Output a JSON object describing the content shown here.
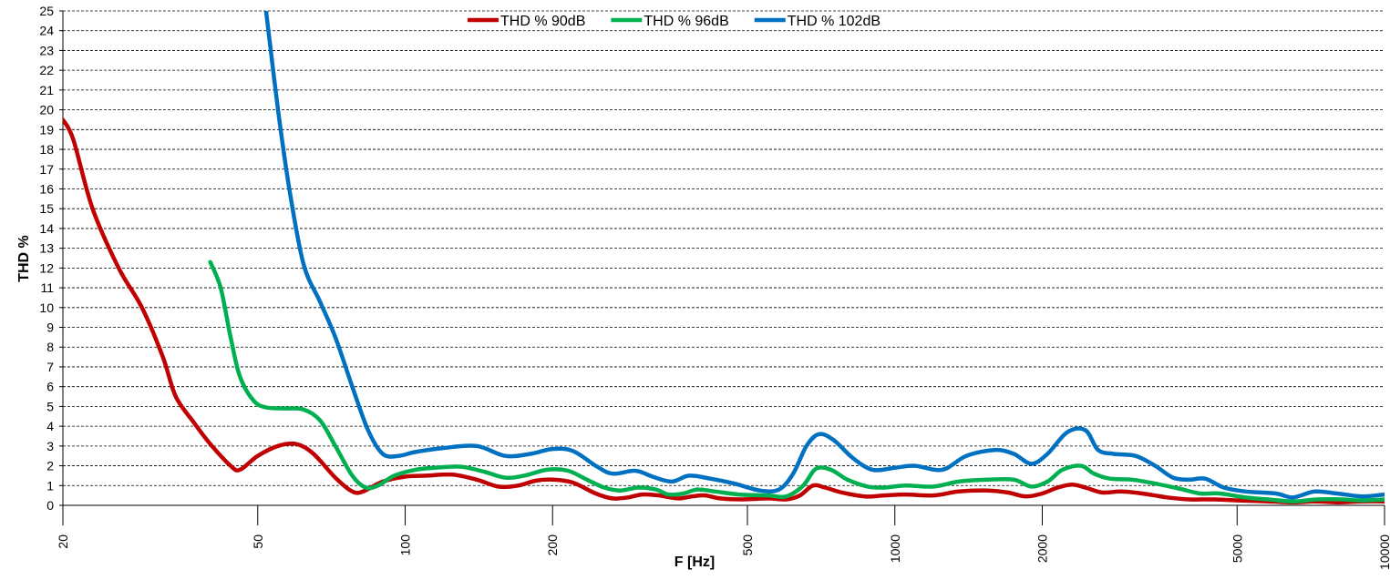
{
  "chart_data": {
    "type": "line",
    "xlabel": "F [Hz]",
    "ylabel": "THD %",
    "x_scale": "log",
    "xlim": [
      20,
      10000
    ],
    "ylim": [
      0,
      25
    ],
    "x_ticks": [
      20,
      50,
      100,
      200,
      500,
      1000,
      2000,
      5000,
      10000
    ],
    "x_tick_labels": [
      "20",
      "50",
      "100",
      "200",
      "500",
      "1000",
      "2000",
      "5000",
      "10000"
    ],
    "y_ticks": [
      0,
      1,
      2,
      3,
      4,
      5,
      6,
      7,
      8,
      9,
      10,
      11,
      12,
      13,
      14,
      15,
      16,
      17,
      18,
      19,
      20,
      21,
      22,
      23,
      24,
      25
    ],
    "y_tick_labels": [
      "0",
      "1",
      "2",
      "3",
      "4",
      "5",
      "6",
      "7",
      "8",
      "9",
      "10",
      "11",
      "12",
      "13",
      "14",
      "15",
      "16",
      "17",
      "18",
      "19",
      "20",
      "21",
      "22",
      "23",
      "24",
      "25"
    ],
    "grid": "horizontal dashed",
    "legend_position": "top-center",
    "series": [
      {
        "name": "THD % 90dB",
        "color": "#c00000",
        "points": [
          [
            20,
            19.5
          ],
          [
            21,
            18.5
          ],
          [
            23,
            15
          ],
          [
            26,
            12
          ],
          [
            29,
            10
          ],
          [
            32,
            7.5
          ],
          [
            34,
            5.5
          ],
          [
            37,
            4.2
          ],
          [
            40,
            3.1
          ],
          [
            44,
            2.0
          ],
          [
            46,
            1.8
          ],
          [
            50,
            2.5
          ],
          [
            55,
            3.0
          ],
          [
            60,
            3.1
          ],
          [
            65,
            2.6
          ],
          [
            72,
            1.4
          ],
          [
            78,
            0.7
          ],
          [
            82,
            0.7
          ],
          [
            90,
            1.2
          ],
          [
            100,
            1.45
          ],
          [
            110,
            1.5
          ],
          [
            125,
            1.55
          ],
          [
            140,
            1.3
          ],
          [
            155,
            0.95
          ],
          [
            170,
            1.0
          ],
          [
            185,
            1.25
          ],
          [
            200,
            1.3
          ],
          [
            220,
            1.15
          ],
          [
            245,
            0.6
          ],
          [
            265,
            0.35
          ],
          [
            285,
            0.4
          ],
          [
            305,
            0.55
          ],
          [
            330,
            0.5
          ],
          [
            360,
            0.35
          ],
          [
            385,
            0.45
          ],
          [
            410,
            0.5
          ],
          [
            440,
            0.35
          ],
          [
            490,
            0.3
          ],
          [
            550,
            0.35
          ],
          [
            600,
            0.3
          ],
          [
            640,
            0.5
          ],
          [
            680,
            1.0
          ],
          [
            720,
            0.9
          ],
          [
            780,
            0.65
          ],
          [
            870,
            0.45
          ],
          [
            950,
            0.5
          ],
          [
            1050,
            0.55
          ],
          [
            1200,
            0.5
          ],
          [
            1350,
            0.7
          ],
          [
            1550,
            0.75
          ],
          [
            1700,
            0.65
          ],
          [
            1850,
            0.45
          ],
          [
            2000,
            0.6
          ],
          [
            2150,
            0.9
          ],
          [
            2300,
            1.05
          ],
          [
            2450,
            0.9
          ],
          [
            2650,
            0.65
          ],
          [
            2900,
            0.7
          ],
          [
            3200,
            0.6
          ],
          [
            3600,
            0.4
          ],
          [
            4000,
            0.3
          ],
          [
            4500,
            0.3
          ],
          [
            5000,
            0.25
          ],
          [
            5800,
            0.2
          ],
          [
            6500,
            0.15
          ],
          [
            7200,
            0.2
          ],
          [
            8000,
            0.15
          ],
          [
            9000,
            0.2
          ],
          [
            10000,
            0.2
          ]
        ]
      },
      {
        "name": "THD % 96dB",
        "color": "#00b050",
        "points": [
          [
            40,
            12.3
          ],
          [
            42,
            11
          ],
          [
            44,
            8.5
          ],
          [
            46,
            6.5
          ],
          [
            49,
            5.3
          ],
          [
            52,
            4.95
          ],
          [
            57,
            4.9
          ],
          [
            62,
            4.85
          ],
          [
            67,
            4.3
          ],
          [
            72,
            3.0
          ],
          [
            78,
            1.5
          ],
          [
            83,
            0.9
          ],
          [
            88,
            1.0
          ],
          [
            95,
            1.5
          ],
          [
            105,
            1.8
          ],
          [
            115,
            1.9
          ],
          [
            130,
            1.95
          ],
          [
            145,
            1.7
          ],
          [
            160,
            1.4
          ],
          [
            175,
            1.5
          ],
          [
            195,
            1.8
          ],
          [
            215,
            1.75
          ],
          [
            235,
            1.3
          ],
          [
            255,
            0.9
          ],
          [
            275,
            0.75
          ],
          [
            300,
            0.9
          ],
          [
            325,
            0.8
          ],
          [
            345,
            0.55
          ],
          [
            370,
            0.6
          ],
          [
            395,
            0.8
          ],
          [
            430,
            0.7
          ],
          [
            480,
            0.55
          ],
          [
            550,
            0.5
          ],
          [
            600,
            0.45
          ],
          [
            650,
            1.0
          ],
          [
            690,
            1.85
          ],
          [
            740,
            1.8
          ],
          [
            800,
            1.3
          ],
          [
            880,
            0.95
          ],
          [
            950,
            0.9
          ],
          [
            1050,
            1.0
          ],
          [
            1200,
            0.95
          ],
          [
            1350,
            1.2
          ],
          [
            1550,
            1.3
          ],
          [
            1750,
            1.3
          ],
          [
            1900,
            0.95
          ],
          [
            2050,
            1.2
          ],
          [
            2200,
            1.8
          ],
          [
            2400,
            2.0
          ],
          [
            2550,
            1.6
          ],
          [
            2750,
            1.35
          ],
          [
            3050,
            1.3
          ],
          [
            3400,
            1.1
          ],
          [
            3800,
            0.85
          ],
          [
            4200,
            0.6
          ],
          [
            4600,
            0.6
          ],
          [
            5200,
            0.4
          ],
          [
            5800,
            0.3
          ],
          [
            6500,
            0.2
          ],
          [
            7300,
            0.3
          ],
          [
            8200,
            0.3
          ],
          [
            9000,
            0.25
          ],
          [
            10000,
            0.3
          ]
        ]
      },
      {
        "name": "THD % 102dB",
        "color": "#0070c0",
        "points": [
          [
            52,
            25
          ],
          [
            55,
            20
          ],
          [
            58,
            16
          ],
          [
            62,
            12.2
          ],
          [
            67,
            10.3
          ],
          [
            72,
            8.5
          ],
          [
            78,
            6
          ],
          [
            84,
            3.8
          ],
          [
            90,
            2.6
          ],
          [
            97,
            2.5
          ],
          [
            105,
            2.7
          ],
          [
            120,
            2.9
          ],
          [
            140,
            3.0
          ],
          [
            160,
            2.5
          ],
          [
            180,
            2.6
          ],
          [
            200,
            2.85
          ],
          [
            220,
            2.75
          ],
          [
            245,
            2.0
          ],
          [
            265,
            1.6
          ],
          [
            295,
            1.75
          ],
          [
            320,
            1.45
          ],
          [
            350,
            1.2
          ],
          [
            380,
            1.5
          ],
          [
            420,
            1.35
          ],
          [
            470,
            1.1
          ],
          [
            530,
            0.75
          ],
          [
            580,
            0.8
          ],
          [
            620,
            1.6
          ],
          [
            660,
            3.0
          ],
          [
            700,
            3.6
          ],
          [
            750,
            3.3
          ],
          [
            820,
            2.4
          ],
          [
            900,
            1.8
          ],
          [
            1000,
            1.9
          ],
          [
            1100,
            2.0
          ],
          [
            1250,
            1.8
          ],
          [
            1400,
            2.5
          ],
          [
            1600,
            2.8
          ],
          [
            1750,
            2.6
          ],
          [
            1900,
            2.1
          ],
          [
            2050,
            2.6
          ],
          [
            2250,
            3.7
          ],
          [
            2450,
            3.8
          ],
          [
            2600,
            2.8
          ],
          [
            2800,
            2.6
          ],
          [
            3100,
            2.5
          ],
          [
            3400,
            2.0
          ],
          [
            3700,
            1.4
          ],
          [
            4000,
            1.3
          ],
          [
            4300,
            1.35
          ],
          [
            4700,
            0.9
          ],
          [
            5200,
            0.7
          ],
          [
            6000,
            0.6
          ],
          [
            6500,
            0.4
          ],
          [
            7200,
            0.7
          ],
          [
            8000,
            0.6
          ],
          [
            9000,
            0.45
          ],
          [
            10000,
            0.55
          ]
        ]
      }
    ]
  }
}
